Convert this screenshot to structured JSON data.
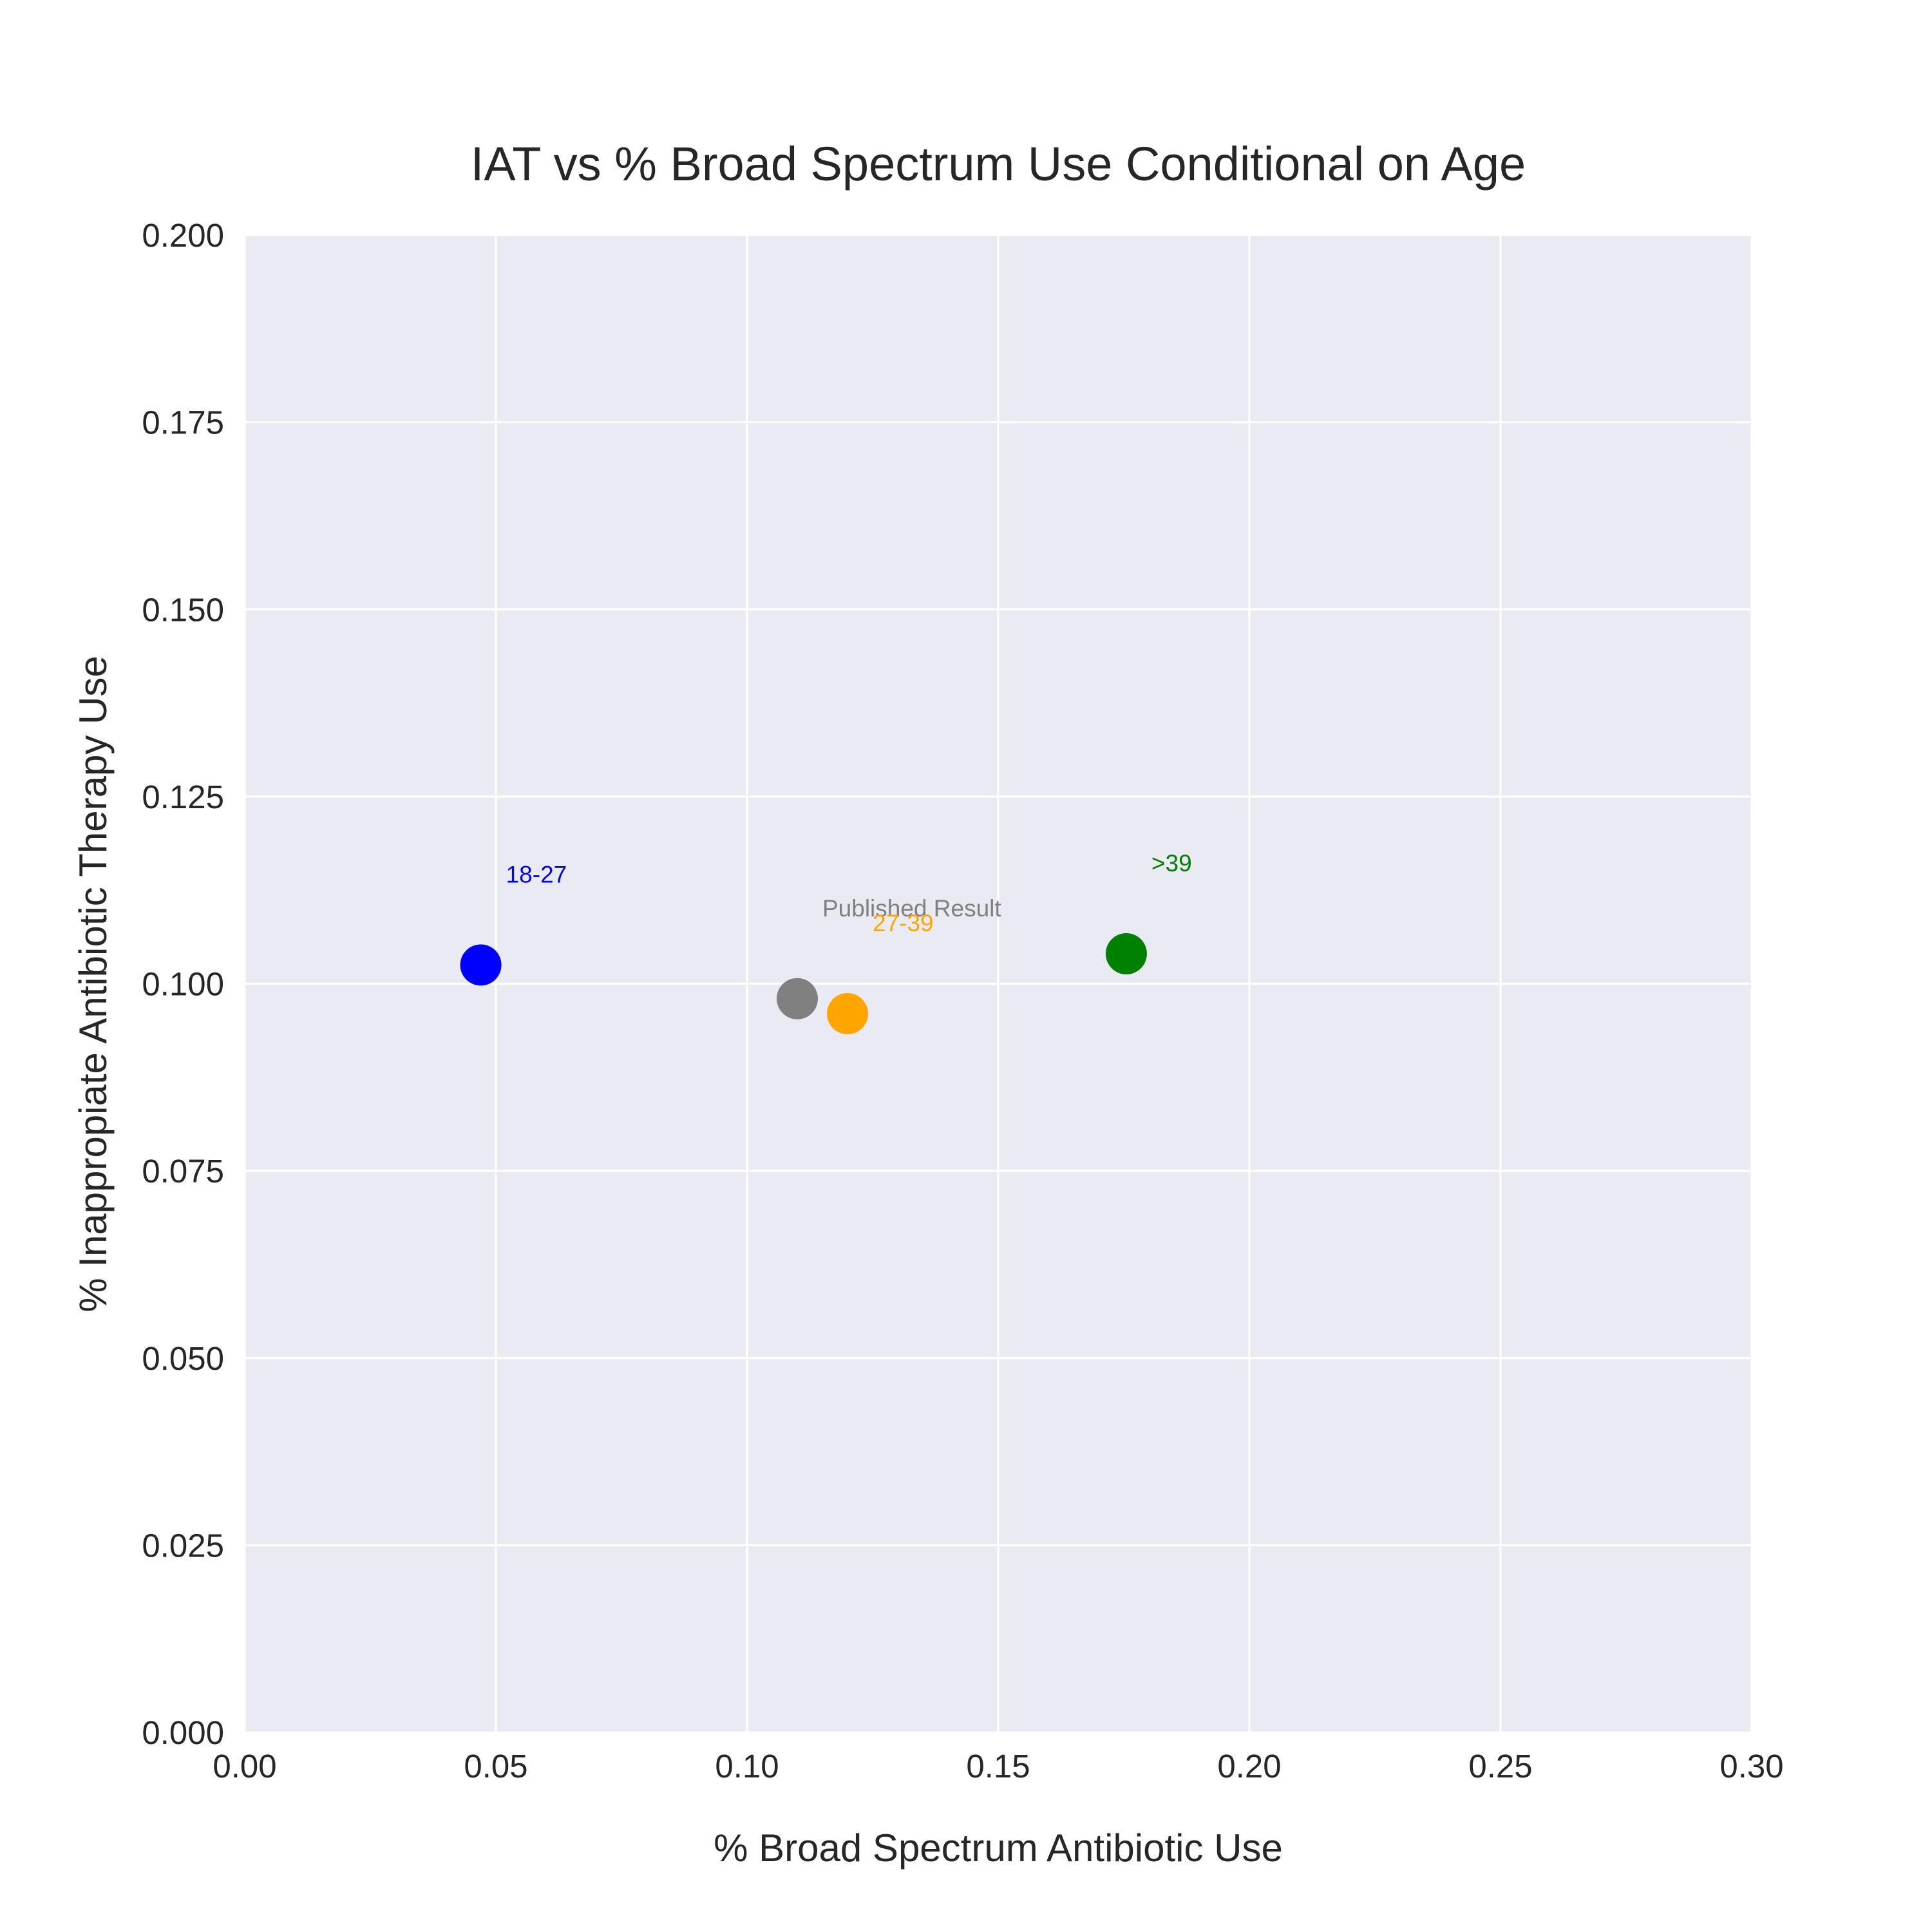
{
  "chart_data": {
    "type": "scatter",
    "title": "IAT vs % Broad Spectrum Use Conditional on Age",
    "xlabel": "% Broad Spectrum Antibiotic Use",
    "ylabel": "% Inappropiate Antibiotic Therapy Use",
    "xlim": [
      0.0,
      0.3
    ],
    "ylim": [
      0.0,
      0.2
    ],
    "xticks": [
      "0.00",
      "0.05",
      "0.10",
      "0.15",
      "0.20",
      "0.25",
      "0.30"
    ],
    "yticks": [
      "0.000",
      "0.025",
      "0.050",
      "0.075",
      "0.100",
      "0.125",
      "0.150",
      "0.175",
      "0.200"
    ],
    "grid": true,
    "background_color": "#eaeaf2",
    "grid_color": "#ffffff",
    "points": [
      {
        "label": "18-27",
        "x": 0.047,
        "y": 0.1025,
        "color": "#0000ff",
        "label_dx": 0.005,
        "label_dy": 0.011
      },
      {
        "label": "Published Result",
        "x": 0.11,
        "y": 0.098,
        "color": "#808080",
        "label_dx": 0.005,
        "label_dy": 0.011
      },
      {
        "label": "27-39",
        "x": 0.12,
        "y": 0.096,
        "color": "#ffa500",
        "label_dx": 0.005,
        "label_dy": 0.011
      },
      {
        "label": ">39",
        "x": 0.1755,
        "y": 0.104,
        "color": "#008000",
        "label_dx": 0.005,
        "label_dy": 0.011
      }
    ]
  }
}
